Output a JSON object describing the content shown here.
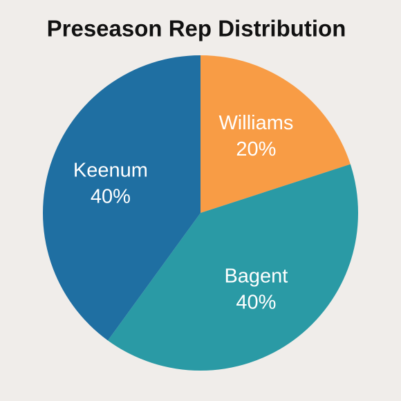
{
  "chart_data": {
    "type": "pie",
    "title": "Preseason Rep Distribution",
    "categories": [
      "Williams",
      "Bagent",
      "Keenum"
    ],
    "values": [
      20,
      40,
      40
    ],
    "value_labels": [
      "20%",
      "40%",
      "40%"
    ],
    "colors": [
      "#f89c45",
      "#2a9aa5",
      "#1f6fa2"
    ]
  }
}
